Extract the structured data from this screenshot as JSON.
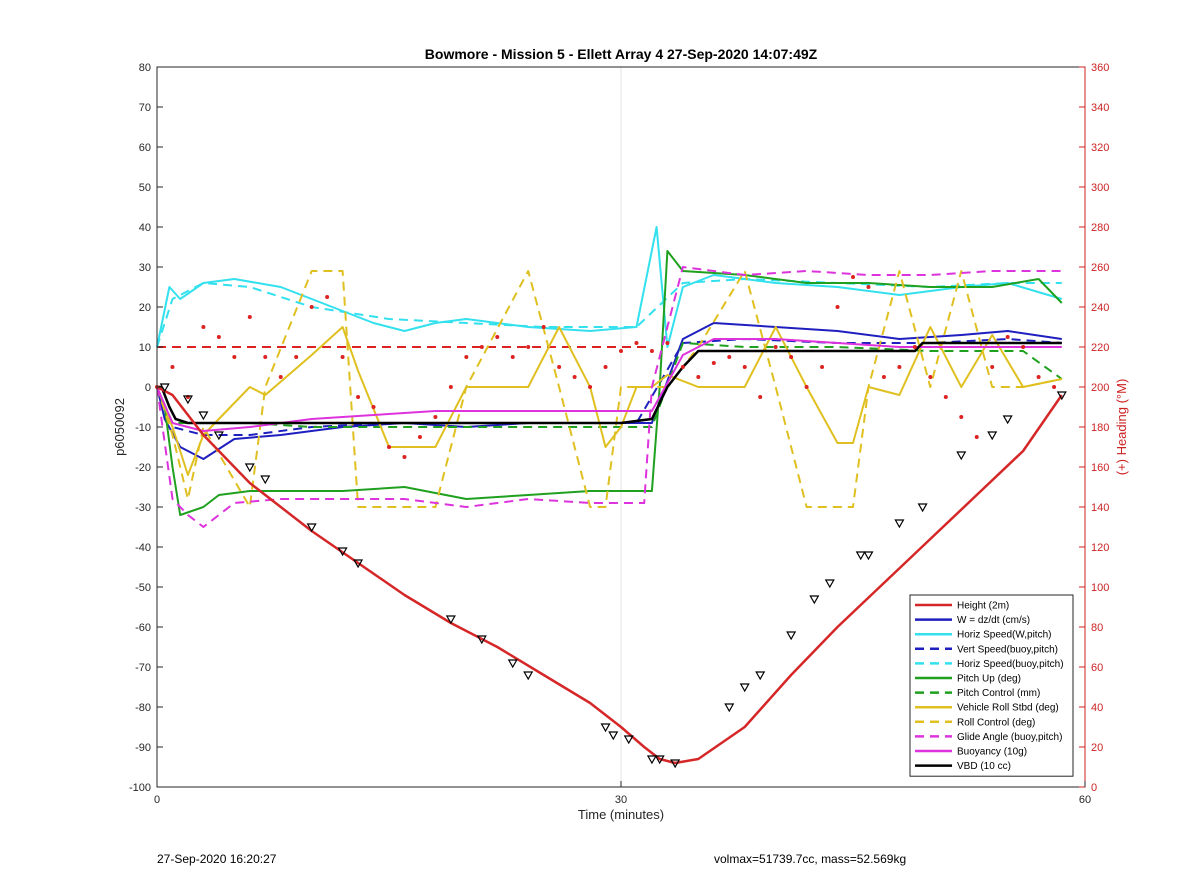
{
  "chart_data": {
    "type": "line",
    "title": "Bowmore - Mission 5 - Ellett Array 4 27-Sep-2020 14:07:49Z",
    "xlabel": "Time (minutes)",
    "ylabel": "p6050092",
    "y2label": "(+) Heading (°M)",
    "xlim": [
      0,
      60
    ],
    "ylim": [
      -100,
      80
    ],
    "y2lim": [
      0,
      360
    ],
    "xticks": [
      0,
      30,
      60
    ],
    "yticks": [
      -100,
      -90,
      -80,
      -70,
      -60,
      -50,
      -40,
      -30,
      -20,
      -10,
      0,
      10,
      20,
      30,
      40,
      50,
      60,
      70,
      80
    ],
    "y2ticks": [
      0,
      20,
      40,
      60,
      80,
      100,
      120,
      140,
      160,
      180,
      200,
      220,
      240,
      260,
      280,
      300,
      320,
      340,
      360
    ],
    "grid": "x only",
    "legend_position": "bottom-right",
    "series": [
      {
        "name": "Height (2m)",
        "color": "#d62728",
        "style": "solid",
        "x": [
          0,
          1,
          3,
          6,
          10,
          13,
          16,
          19,
          22,
          25,
          28,
          30,
          31.5,
          32.5,
          33.5,
          35,
          38,
          41,
          44,
          47,
          50,
          53,
          56,
          58.5
        ],
        "y": [
          0,
          -2,
          -12,
          -24,
          -36,
          -44,
          -52,
          -59,
          -65,
          -72,
          -79,
          -85,
          -90,
          -93,
          -94,
          -93,
          -85,
          -72,
          -60,
          -49,
          -38,
          -27,
          -16,
          -2
        ]
      },
      {
        "name": "W = dz/dt (cm/s)",
        "color": "#1f1fbf",
        "style": "solid",
        "x": [
          0,
          0.5,
          1.5,
          3,
          5,
          8,
          12,
          16,
          20,
          24,
          28,
          32,
          34,
          36,
          40,
          44,
          48,
          52,
          55,
          58.5
        ],
        "y": [
          0,
          -8,
          -15,
          -18,
          -13,
          -12,
          -10,
          -9,
          -10,
          -9,
          -9,
          -9,
          12,
          16,
          15,
          14,
          12,
          13,
          14,
          12
        ]
      },
      {
        "name": "Horiz Speed(W,pitch)",
        "color": "#33e0ee",
        "style": "solid",
        "x": [
          0,
          0.8,
          1.5,
          3,
          5,
          8,
          10,
          12,
          14,
          16,
          18,
          20,
          24,
          28,
          31,
          32.3,
          33,
          34,
          36,
          40,
          44,
          48,
          52,
          55,
          58.5
        ],
        "y": [
          10,
          25,
          22,
          26,
          27,
          25,
          22,
          19,
          16,
          14,
          16,
          17,
          15,
          14,
          15,
          40,
          10,
          25,
          28,
          26,
          25,
          23,
          25,
          26,
          22
        ]
      },
      {
        "name": "Vert Speed(buoy,pitch)",
        "color": "#1f1fbf",
        "style": "dashed",
        "x": [
          0,
          1,
          3,
          6,
          10,
          15,
          20,
          25,
          31,
          34,
          38,
          44,
          50,
          55,
          58.5
        ],
        "y": [
          0,
          -10,
          -12,
          -12,
          -10,
          -9,
          -9,
          -9,
          -9,
          11,
          12,
          11,
          11,
          12,
          11
        ]
      },
      {
        "name": "Horiz Speed(buoy,pitch)",
        "color": "#33e0ee",
        "style": "dashed",
        "x": [
          0,
          1,
          3,
          6,
          10,
          15,
          20,
          25,
          31,
          34,
          38,
          44,
          50,
          55,
          58.5
        ],
        "y": [
          10,
          22,
          26,
          25,
          20,
          17,
          16,
          15,
          15,
          26,
          27,
          26,
          25,
          26,
          26
        ]
      },
      {
        "name": "Pitch Up (deg)",
        "color": "#1fa01f",
        "style": "solid",
        "x": [
          0,
          0.5,
          1,
          1.5,
          3,
          4,
          6,
          8,
          12,
          16,
          20,
          24,
          28,
          32,
          32.5,
          33,
          34,
          38,
          42,
          46,
          50,
          54,
          57,
          58.5
        ],
        "y": [
          0,
          -5,
          -20,
          -32,
          -30,
          -27,
          -26,
          -26,
          -26,
          -25,
          -28,
          -27,
          -26,
          -26,
          0,
          34,
          29,
          28,
          26,
          26,
          25,
          25,
          27,
          21
        ]
      },
      {
        "name": "Pitch Control (mm)",
        "color": "#1fa01f",
        "style": "dashed",
        "x": [
          0,
          1,
          3,
          6,
          10,
          14,
          18,
          22,
          26,
          32,
          34,
          38,
          44,
          50,
          56,
          58.5
        ],
        "y": [
          0,
          -9,
          -9,
          -9,
          -10,
          -10,
          -10,
          -10,
          -10,
          -10,
          11,
          10,
          10,
          9,
          9,
          2
        ]
      },
      {
        "name": "Vehicle Roll Stbd (deg)",
        "color": "#e0c020",
        "style": "solid",
        "x": [
          0,
          1,
          2,
          3,
          6,
          7,
          10,
          12,
          13,
          15,
          18,
          20,
          24,
          26,
          28,
          29,
          30,
          31,
          32,
          33,
          35,
          38,
          40,
          42,
          44,
          45,
          46,
          48,
          50,
          52,
          54,
          56,
          58.5
        ],
        "y": [
          0,
          -10,
          -22,
          -12,
          0,
          -2,
          8,
          15,
          4,
          -15,
          -15,
          0,
          0,
          15,
          0,
          -15,
          -10,
          0,
          0,
          3,
          0,
          0,
          15,
          0,
          -14,
          -14,
          0,
          -2,
          15,
          0,
          13,
          0,
          2
        ]
      },
      {
        "name": "Roll Control (deg)",
        "color": "#e0c020",
        "style": "dashed",
        "x": [
          0,
          1,
          2,
          3,
          6,
          7,
          10,
          12,
          13,
          15,
          18,
          20,
          24,
          26,
          28,
          29,
          30,
          31,
          32,
          33,
          35,
          38,
          40,
          42,
          44,
          45,
          46,
          48,
          50,
          52,
          54,
          56,
          58.5
        ],
        "y": [
          0,
          -12,
          -28,
          -10,
          -30,
          0,
          29,
          29,
          -30,
          -30,
          -30,
          0,
          29,
          0,
          -30,
          -30,
          0,
          0,
          0,
          0,
          10,
          29,
          0,
          -30,
          -30,
          -30,
          0,
          29,
          0,
          29,
          0,
          0,
          2
        ]
      },
      {
        "name": "Glide Angle (buoy,pitch)",
        "color": "#dd33dd",
        "style": "dashed",
        "x": [
          0,
          1,
          2,
          3,
          5,
          8,
          12,
          16,
          20,
          24,
          28,
          31.5,
          32,
          34,
          38,
          42,
          46,
          50,
          54,
          58.5
        ],
        "y": [
          0,
          -28,
          -32,
          -35,
          -29,
          -28,
          -28,
          -28,
          -30,
          -28,
          -29,
          -29,
          0,
          30,
          28,
          29,
          28,
          28,
          29,
          29
        ]
      },
      {
        "name": "Buoyancy (10g)",
        "color": "#dd33dd",
        "style": "solid",
        "x": [
          0,
          1,
          2,
          3,
          6,
          10,
          14,
          18,
          22,
          26,
          30,
          32,
          34,
          36,
          40,
          44,
          48,
          50,
          54,
          58.5
        ],
        "y": [
          0,
          -9,
          -10,
          -11,
          -10,
          -8,
          -7,
          -6,
          -6,
          -6,
          -6,
          -6,
          8,
          12,
          12,
          11,
          10,
          10,
          10,
          10
        ]
      },
      {
        "name": "VBD (10 cc)",
        "color": "#000000",
        "style": "solid",
        "x": [
          0,
          0.3,
          0.8,
          1.2,
          2,
          5,
          10,
          15,
          20,
          25,
          30,
          32,
          33,
          34,
          35,
          36,
          40,
          45,
          49,
          49.5,
          55,
          58.5
        ],
        "y": [
          0,
          0,
          -5,
          -8,
          -9,
          -9,
          -9,
          -9,
          -9,
          -9,
          -9,
          -8,
          0,
          5,
          9,
          9,
          9,
          9,
          9,
          11,
          11,
          11
        ]
      }
    ],
    "heading": {
      "name": "Heading (dots, right axis)",
      "color": "#dd2222",
      "target": 220,
      "x": [
        0,
        1,
        2,
        3,
        4,
        5,
        6,
        7,
        8,
        9,
        10,
        11,
        12,
        13,
        14,
        15,
        16,
        17,
        18,
        19,
        20,
        21,
        22,
        23,
        24,
        25,
        26,
        27,
        28,
        29,
        30,
        31,
        32,
        33,
        34,
        35,
        36,
        37,
        38,
        39,
        40,
        41,
        42,
        43,
        44,
        45,
        46,
        47,
        48,
        49,
        50,
        51,
        52,
        53,
        54,
        55,
        56,
        57,
        58
      ],
      "y": [
        200,
        210,
        195,
        230,
        225,
        215,
        235,
        215,
        205,
        215,
        240,
        245,
        215,
        195,
        190,
        170,
        165,
        175,
        185,
        200,
        215,
        220,
        225,
        215,
        220,
        230,
        210,
        205,
        200,
        210,
        218,
        222,
        218,
        222,
        210,
        205,
        212,
        215,
        210,
        195,
        220,
        215,
        200,
        210,
        240,
        255,
        250,
        205,
        210,
        220,
        205,
        195,
        185,
        175,
        210,
        225,
        220,
        205,
        200
      ]
    },
    "markers": {
      "name": "Height markers",
      "symbol": "triangle",
      "x": [
        0.5,
        2,
        3,
        4,
        6,
        7,
        10,
        12,
        13,
        19,
        21,
        23,
        24,
        29,
        29.5,
        30.5,
        32,
        32.5,
        33.5,
        37,
        38,
        39,
        41,
        42.5,
        43.5,
        45.5,
        46,
        48,
        49.5,
        52,
        54,
        55,
        58.5
      ],
      "y": [
        0,
        -3,
        -7,
        -12,
        -20,
        -23,
        -35,
        -41,
        -44,
        -58,
        -63,
        -69,
        -72,
        -85,
        -87,
        -88,
        -93,
        -93,
        -94,
        -80,
        -75,
        -72,
        -62,
        -53,
        -49,
        -42,
        -42,
        -34,
        -30,
        -17,
        -12,
        -8,
        -2
      ]
    },
    "legend": [
      {
        "label": "Height (2m)",
        "color": "#d62728",
        "style": "solid"
      },
      {
        "label": "W = dz/dt (cm/s)",
        "color": "#1f1fbf",
        "style": "solid"
      },
      {
        "label": "Horiz Speed(W,pitch)",
        "color": "#33e0ee",
        "style": "solid"
      },
      {
        "label": "Vert Speed(buoy,pitch)",
        "color": "#1f1fbf",
        "style": "dashed"
      },
      {
        "label": "Horiz Speed(buoy,pitch)",
        "color": "#33e0ee",
        "style": "dashed"
      },
      {
        "label": "Pitch Up (deg)",
        "color": "#1fa01f",
        "style": "solid"
      },
      {
        "label": "Pitch Control (mm)",
        "color": "#1fa01f",
        "style": "dashed"
      },
      {
        "label": "Vehicle Roll Stbd (deg)",
        "color": "#e0c020",
        "style": "solid"
      },
      {
        "label": "Roll Control (deg)",
        "color": "#e0c020",
        "style": "dashed"
      },
      {
        "label": "Glide Angle (buoy,pitch)",
        "color": "#dd33dd",
        "style": "dashed"
      },
      {
        "label": "Buoyancy (10g)",
        "color": "#dd33dd",
        "style": "solid"
      },
      {
        "label": "VBD (10 cc)",
        "color": "#000000",
        "style": "solid"
      }
    ]
  },
  "footer": {
    "left": "27-Sep-2020 16:20:27",
    "right": "volmax=51739.7cc, mass=52.569kg"
  }
}
